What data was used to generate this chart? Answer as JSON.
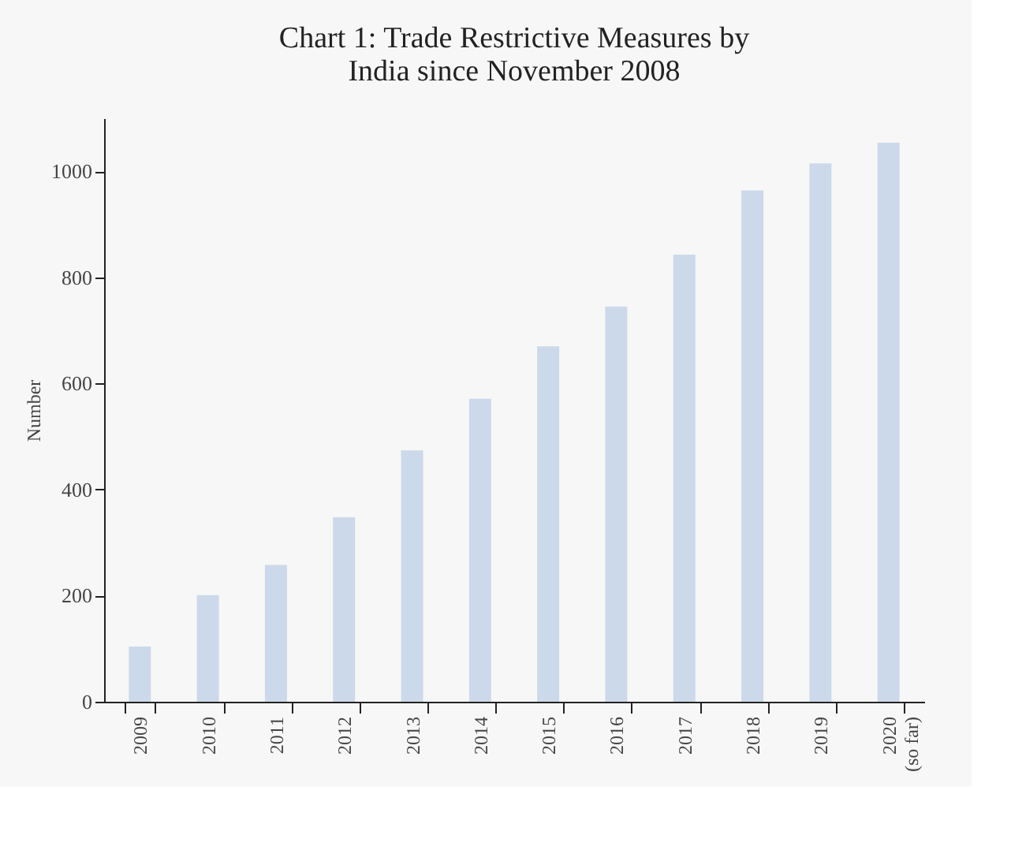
{
  "chart_data": {
    "type": "bar",
    "title": "Chart 1: Trade Restrictive Measures by India since November 2008",
    "ylabel": "Number",
    "categories": [
      "2009",
      "2010",
      "2011",
      "2012",
      "2013",
      "2014",
      "2015",
      "2016",
      "2017",
      "2018",
      "2019",
      "2020 (so far)"
    ],
    "values": [
      104,
      201,
      258,
      348,
      474,
      571,
      670,
      745,
      843,
      964,
      1015,
      1054
    ],
    "color": "#ccd9ea",
    "ylim": [
      0,
      1100
    ],
    "yticks": [
      0,
      200,
      400,
      600,
      800,
      1000
    ],
    "grid": false
  }
}
